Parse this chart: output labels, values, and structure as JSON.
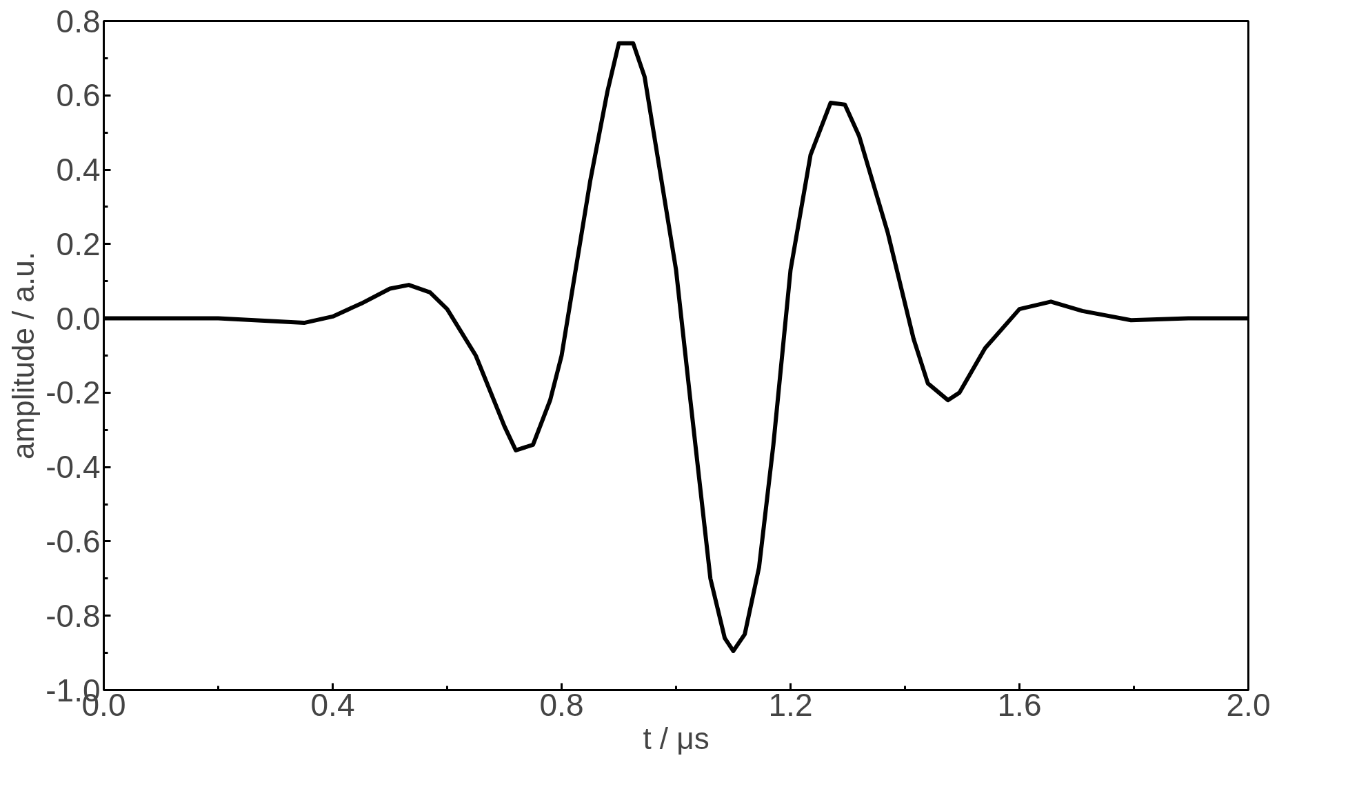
{
  "chart_data": {
    "type": "line",
    "xlabel": "t / μs",
    "ylabel": "amplitude / a.u.",
    "x": [
      0,
      0.2,
      0.35,
      0.4,
      0.45,
      0.5,
      0.533,
      0.57,
      0.6,
      0.65,
      0.7,
      0.72,
      0.75,
      0.78,
      0.8,
      0.85,
      0.88,
      0.9,
      0.925,
      0.945,
      1.0,
      1.025,
      1.06,
      1.085,
      1.1,
      1.12,
      1.145,
      1.17,
      1.2,
      1.235,
      1.27,
      1.295,
      1.32,
      1.37,
      1.415,
      1.44,
      1.475,
      1.495,
      1.54,
      1.6,
      1.655,
      1.71,
      1.795,
      1.895,
      2.0
    ],
    "series": [
      {
        "color": "#000000",
        "values": [
          0,
          0,
          -0.012,
          0.005,
          0.04,
          0.08,
          0.09,
          0.07,
          0.025,
          -0.1,
          -0.29,
          -0.355,
          -0.34,
          -0.22,
          -0.1,
          0.37,
          0.61,
          0.74,
          0.74,
          0.65,
          0.13,
          -0.22,
          -0.7,
          -0.86,
          -0.895,
          -0.85,
          -0.67,
          -0.34,
          0.13,
          0.44,
          0.58,
          0.575,
          0.49,
          0.23,
          -0.055,
          -0.175,
          -0.22,
          -0.2,
          -0.08,
          0.025,
          0.045,
          0.02,
          -0.005,
          0,
          0
        ]
      }
    ],
    "xlim": [
      0,
      2.0
    ],
    "ylim": [
      -1.0,
      0.8
    ],
    "xticks": [
      {
        "value": 0,
        "label": "0.0"
      },
      {
        "value": 0.2,
        "label": null
      },
      {
        "value": 0.4,
        "label": "0.4"
      },
      {
        "value": 0.6,
        "label": null
      },
      {
        "value": 0.8,
        "label": "0.8"
      },
      {
        "value": 1.0,
        "label": null
      },
      {
        "value": 1.2,
        "label": "1.2"
      },
      {
        "value": 1.4,
        "label": null
      },
      {
        "value": 1.6,
        "label": "1.6"
      },
      {
        "value": 1.8,
        "label": null
      },
      {
        "value": 2.0,
        "label": "2.0"
      }
    ],
    "yticks": [
      {
        "value": -1.0,
        "label": "-1.0"
      },
      {
        "value": -0.9,
        "label": null
      },
      {
        "value": -0.8,
        "label": "-0.8"
      },
      {
        "value": -0.7,
        "label": null
      },
      {
        "value": -0.6,
        "label": "-0.6"
      },
      {
        "value": -0.5,
        "label": null
      },
      {
        "value": -0.4,
        "label": "-0.4"
      },
      {
        "value": -0.3,
        "label": null
      },
      {
        "value": -0.2,
        "label": "-0.2"
      },
      {
        "value": -0.1,
        "label": null
      },
      {
        "value": 0,
        "label": "0.0"
      },
      {
        "value": 0.1,
        "label": null
      },
      {
        "value": 0.2,
        "label": "0.2"
      },
      {
        "value": 0.3,
        "label": null
      },
      {
        "value": 0.4,
        "label": "0.4"
      },
      {
        "value": 0.5,
        "label": null
      },
      {
        "value": 0.6,
        "label": "0.6"
      },
      {
        "value": 0.7,
        "label": null
      },
      {
        "value": 0.8,
        "label": "0.8"
      }
    ],
    "grid": false,
    "line_style": "solid"
  }
}
